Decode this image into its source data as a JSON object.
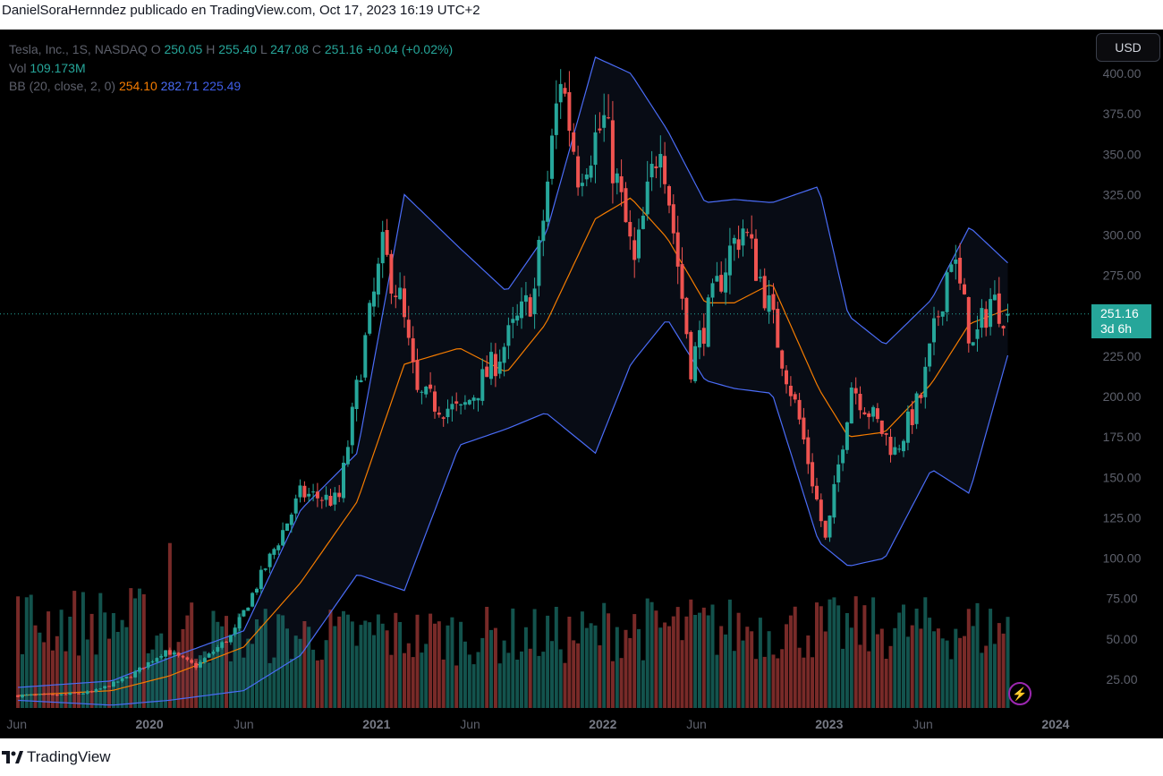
{
  "header": {
    "attribution": "DanielSoraHernndez publicado en TradingView.com, Oct 17, 2023 16:19 UTC+2"
  },
  "footer": {
    "brand": "TradingView"
  },
  "currency_button": "USD",
  "legend": {
    "symbol": "Tesla, Inc., 1S, NASDAQ",
    "o_key": "O",
    "open": "250.05",
    "h_key": "H",
    "high": "255.40",
    "l_key": "L",
    "low": "247.08",
    "c_key": "C",
    "close": "251.16",
    "change": "+0.04 (+0.02%)",
    "vol_key": "Vol",
    "volume": "109.173M",
    "bb_key": "BB (20, close, 2, 0)",
    "bb_basis": "254.10",
    "bb_upper": "282.71",
    "bb_lower": "225.49"
  },
  "price_label": {
    "price": "251.16",
    "countdown": "3d 6h"
  },
  "colors": {
    "up": "#26a69a",
    "down": "#ef5350",
    "basis": "#f57c00",
    "bands": "#4a6cf7",
    "background": "#000000"
  },
  "chart_data": {
    "type": "candlestick",
    "interval": "1 week",
    "y_axis": {
      "ticks": [
        25,
        50,
        75,
        100,
        125,
        150,
        175,
        200,
        225,
        250,
        275,
        300,
        325,
        350,
        375,
        400
      ],
      "ylim": [
        8,
        420
      ],
      "side": "right"
    },
    "x_axis": {
      "ticks": [
        {
          "label": "Jun",
          "date": "2019-06-01",
          "bold": false
        },
        {
          "label": "2020",
          "date": "2020-01-01",
          "bold": true
        },
        {
          "label": "Jun",
          "date": "2020-06-01",
          "bold": false
        },
        {
          "label": "2021",
          "date": "2021-01-01",
          "bold": true
        },
        {
          "label": "Jun",
          "date": "2021-06-01",
          "bold": false
        },
        {
          "label": "2022",
          "date": "2022-01-01",
          "bold": true
        },
        {
          "label": "Jun",
          "date": "2022-06-01",
          "bold": false
        },
        {
          "label": "2023",
          "date": "2023-01-01",
          "bold": true
        },
        {
          "label": "Jun",
          "date": "2023-06-01",
          "bold": false
        },
        {
          "label": "2024",
          "date": "2024-01-01",
          "bold": true
        }
      ],
      "xlim": [
        "2019-05-05",
        "2024-02-25"
      ]
    },
    "close_series": [
      [
        "2019-06-03",
        15
      ],
      [
        "2019-08-01",
        15
      ],
      [
        "2019-10-01",
        17
      ],
      [
        "2019-12-01",
        27
      ],
      [
        "2020-01-27",
        43
      ],
      [
        "2020-03-16",
        33
      ],
      [
        "2020-05-15",
        53
      ],
      [
        "2020-07-13",
        100
      ],
      [
        "2020-09-01",
        140
      ],
      [
        "2020-11-01",
        135
      ],
      [
        "2020-12-07",
        220
      ],
      [
        "2021-01-11",
        290
      ],
      [
        "2021-02-08",
        260
      ],
      [
        "2021-03-08",
        200
      ],
      [
        "2021-05-17",
        190
      ],
      [
        "2021-07-12",
        222
      ],
      [
        "2021-09-13",
        265
      ],
      [
        "2021-10-25",
        400
      ],
      [
        "2021-11-22",
        340
      ],
      [
        "2022-01-03",
        370
      ],
      [
        "2022-02-21",
        280
      ],
      [
        "2022-04-04",
        365
      ],
      [
        "2022-05-23",
        220
      ],
      [
        "2022-07-25",
        290
      ],
      [
        "2022-08-15",
        305
      ],
      [
        "2022-09-19",
        265
      ],
      [
        "2022-11-14",
        185
      ],
      [
        "2022-12-27",
        109
      ],
      [
        "2023-02-06",
        208
      ],
      [
        "2023-04-17",
        166
      ],
      [
        "2023-05-29",
        200
      ],
      [
        "2023-07-17",
        290
      ],
      [
        "2023-08-21",
        230
      ],
      [
        "2023-09-18",
        260
      ],
      [
        "2023-10-16",
        251.16
      ]
    ],
    "bollinger": {
      "basis": [
        [
          "2019-06-03",
          15
        ],
        [
          "2019-11-01",
          18
        ],
        [
          "2020-02-01",
          27
        ],
        [
          "2020-06-01",
          45
        ],
        [
          "2020-09-01",
          85
        ],
        [
          "2020-12-01",
          135
        ],
        [
          "2021-02-15",
          220
        ],
        [
          "2021-05-15",
          230
        ],
        [
          "2021-07-30",
          215
        ],
        [
          "2021-10-01",
          245
        ],
        [
          "2021-12-20",
          310
        ],
        [
          "2022-02-15",
          323
        ],
        [
          "2022-04-15",
          298
        ],
        [
          "2022-06-15",
          258
        ],
        [
          "2022-08-01",
          258
        ],
        [
          "2022-10-01",
          270
        ],
        [
          "2022-12-15",
          205
        ],
        [
          "2023-02-01",
          175
        ],
        [
          "2023-04-01",
          178
        ],
        [
          "2023-06-15",
          208
        ],
        [
          "2023-08-15",
          245
        ],
        [
          "2023-10-16",
          254.1
        ]
      ],
      "upper": [
        [
          "2019-06-03",
          20
        ],
        [
          "2019-11-01",
          24
        ],
        [
          "2020-02-01",
          38
        ],
        [
          "2020-06-01",
          55
        ],
        [
          "2020-09-01",
          130
        ],
        [
          "2020-12-01",
          165
        ],
        [
          "2021-02-15",
          325
        ],
        [
          "2021-05-15",
          292
        ],
        [
          "2021-07-30",
          265
        ],
        [
          "2021-10-01",
          300
        ],
        [
          "2021-12-20",
          410
        ],
        [
          "2022-02-15",
          400
        ],
        [
          "2022-04-15",
          365
        ],
        [
          "2022-06-15",
          320
        ],
        [
          "2022-08-01",
          322
        ],
        [
          "2022-10-01",
          320
        ],
        [
          "2022-12-15",
          330
        ],
        [
          "2023-02-01",
          250
        ],
        [
          "2023-04-01",
          232
        ],
        [
          "2023-06-15",
          260
        ],
        [
          "2023-08-15",
          305
        ],
        [
          "2023-10-16",
          282.71
        ]
      ],
      "lower": [
        [
          "2019-06-03",
          12
        ],
        [
          "2019-11-01",
          9
        ],
        [
          "2020-02-01",
          12
        ],
        [
          "2020-06-01",
          18
        ],
        [
          "2020-09-01",
          40
        ],
        [
          "2020-12-01",
          90
        ],
        [
          "2021-02-15",
          80
        ],
        [
          "2021-05-15",
          170
        ],
        [
          "2021-07-30",
          180
        ],
        [
          "2021-10-01",
          190
        ],
        [
          "2021-12-20",
          165
        ],
        [
          "2022-02-15",
          220
        ],
        [
          "2022-04-15",
          248
        ],
        [
          "2022-06-15",
          210
        ],
        [
          "2022-08-01",
          205
        ],
        [
          "2022-10-01",
          202
        ],
        [
          "2022-12-15",
          110
        ],
        [
          "2023-02-01",
          95
        ],
        [
          "2023-04-01",
          100
        ],
        [
          "2023-06-15",
          155
        ],
        [
          "2023-08-15",
          140
        ],
        [
          "2023-10-16",
          225.49
        ]
      ]
    },
    "volume": {
      "unit": "shares (relative)",
      "max_bar_volume": 1.0,
      "spikes": [
        [
          "2020-02-03",
          0.97
        ],
        [
          "2020-03-09",
          0.62
        ],
        [
          "2021-01-04",
          0.55
        ],
        [
          "2022-12-27",
          0.45
        ]
      ]
    }
  }
}
